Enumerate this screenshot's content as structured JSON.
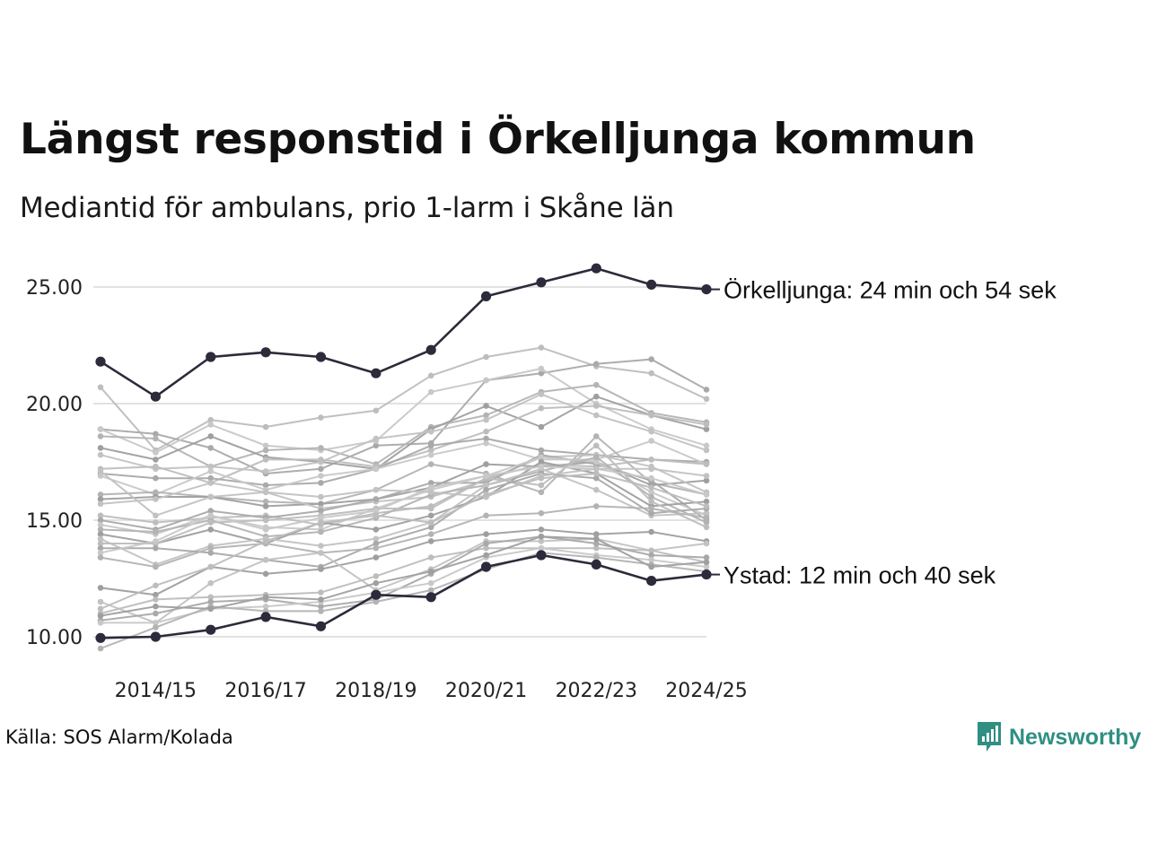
{
  "title": "Längst responstid i Örkelljunga kommun",
  "subtitle": "Mediantid för ambulans, prio 1-larm i Skåne län",
  "source": "Källa: SOS Alarm/Kolada",
  "brand": {
    "name": "Newsworthy",
    "icon": "newsworthy-logo-icon",
    "color": "#2f8f83"
  },
  "colors": {
    "highlight": "#2b2b3b",
    "background_series": "#b5b5b5",
    "grid": "#e2e2e2"
  },
  "chart_data": {
    "type": "line",
    "title": "Längst responstid i Örkelljunga kommun",
    "subtitle": "Mediantid för ambulans, prio 1-larm i Skåne län",
    "xlabel": "",
    "ylabel": "",
    "x": [
      "2013/14",
      "2014/15",
      "2015/16",
      "2016/17",
      "2017/18",
      "2018/19",
      "2019/20",
      "2020/21",
      "2021/22",
      "2022/23",
      "2023/24",
      "2024/25"
    ],
    "x_tick_labels": [
      "2014/15",
      "2016/17",
      "2018/19",
      "2020/21",
      "2022/23",
      "2024/25"
    ],
    "y_ticks": [
      "10.00",
      "15.00",
      "20.00",
      "25.00"
    ],
    "ylim": [
      9.5,
      26
    ],
    "grid": true,
    "highlighted_series": [
      {
        "name": "Örkelljunga",
        "label": "Örkelljunga: 24 min och 54 sek",
        "values": [
          21.8,
          20.3,
          22.0,
          22.2,
          22.0,
          21.3,
          22.3,
          24.6,
          25.2,
          25.8,
          25.1,
          24.9
        ]
      },
      {
        "name": "Ystad",
        "label": "Ystad: 12 min och 40 sek",
        "values": [
          9.95,
          10.0,
          10.3,
          10.85,
          10.45,
          11.8,
          11.7,
          13.0,
          13.5,
          13.1,
          12.4,
          12.67
        ]
      }
    ],
    "series": [
      {
        "values": [
          20.7,
          18.0,
          19.3,
          19.0,
          19.4,
          19.7,
          21.2,
          22.0,
          22.4,
          21.6,
          21.3,
          20.2
        ]
      },
      {
        "values": [
          18.9,
          18.7,
          18.1,
          17.0,
          17.2,
          18.2,
          18.3,
          21.0,
          21.3,
          21.7,
          21.9,
          20.6
        ]
      },
      {
        "values": [
          18.9,
          17.9,
          19.1,
          18.2,
          18.0,
          18.4,
          20.5,
          21.0,
          21.5,
          20.0,
          18.9,
          18.2
        ]
      },
      {
        "values": [
          18.6,
          18.5,
          17.3,
          18.0,
          18.1,
          17.4,
          19.0,
          19.5,
          20.5,
          20.8,
          19.6,
          19.2
        ]
      },
      {
        "values": [
          18.1,
          17.6,
          18.6,
          17.7,
          17.5,
          17.2,
          18.9,
          19.9,
          19.0,
          20.3,
          19.5,
          18.9
        ]
      },
      {
        "values": [
          17.8,
          17.2,
          17.3,
          17.1,
          17.5,
          18.5,
          18.8,
          19.3,
          20.4,
          19.5,
          18.8,
          18.0
        ]
      },
      {
        "values": [
          17.2,
          17.3,
          16.6,
          17.6,
          17.6,
          17.3,
          18.0,
          18.8,
          19.8,
          19.9,
          19.5,
          19.1
        ]
      },
      {
        "values": [
          17.0,
          16.8,
          16.8,
          16.5,
          16.6,
          17.2,
          18.2,
          18.5,
          18.0,
          17.8,
          17.6,
          17.5
        ]
      },
      {
        "values": [
          16.9,
          16.1,
          17.1,
          16.3,
          16.9,
          17.2,
          17.8,
          18.3,
          17.6,
          17.6,
          18.4,
          17.4
        ]
      },
      {
        "values": [
          16.1,
          16.2,
          16.0,
          15.8,
          15.7,
          16.3,
          17.4,
          17.0,
          16.2,
          18.6,
          16.6,
          16.1
        ]
      },
      {
        "values": [
          15.9,
          16.0,
          16.0,
          15.6,
          15.7,
          15.9,
          16.4,
          17.4,
          17.3,
          17.5,
          16.5,
          16.7
        ]
      },
      {
        "values": [
          15.7,
          15.9,
          16.6,
          16.2,
          15.5,
          15.8,
          16.0,
          16.7,
          17.7,
          17.8,
          17.3,
          16.2
        ]
      },
      {
        "values": [
          15.2,
          14.9,
          15.1,
          15.2,
          14.8,
          15.3,
          15.6,
          16.8,
          17.4,
          17.3,
          17.6,
          17.4
        ]
      },
      {
        "values": [
          15.0,
          14.6,
          15.4,
          15.1,
          15.4,
          15.9,
          16.6,
          16.6,
          17.8,
          17.4,
          16.7,
          15.0
        ]
      },
      {
        "values": [
          14.8,
          14.4,
          15.2,
          14.7,
          14.6,
          15.5,
          16.3,
          16.9,
          17.7,
          17.5,
          16.2,
          15.2
        ]
      },
      {
        "values": [
          14.6,
          14.5,
          15.0,
          14.3,
          14.5,
          15.1,
          16.1,
          16.5,
          17.1,
          17.7,
          16.0,
          14.9
        ]
      },
      {
        "values": [
          14.4,
          14.0,
          14.6,
          14.0,
          14.9,
          14.6,
          15.2,
          16.0,
          17.5,
          17.0,
          15.6,
          15.8
        ]
      },
      {
        "values": [
          14.2,
          13.1,
          13.9,
          14.2,
          13.9,
          14.2,
          14.9,
          16.5,
          17.2,
          16.3,
          15.2,
          15.3
        ]
      },
      {
        "values": [
          14.0,
          14.0,
          14.9,
          15.0,
          15.2,
          15.5,
          15.5,
          16.8,
          16.5,
          18.2,
          15.8,
          14.7
        ]
      },
      {
        "values": [
          13.8,
          13.8,
          13.6,
          13.3,
          13.0,
          14.0,
          14.7,
          16.3,
          17.0,
          16.8,
          15.3,
          15.5
        ]
      },
      {
        "values": [
          13.6,
          14.1,
          15.2,
          14.6,
          15.1,
          15.4,
          16.4,
          16.9,
          17.3,
          17.2,
          16.8,
          16.1
        ]
      },
      {
        "values": [
          13.4,
          13.0,
          13.8,
          14.0,
          13.6,
          13.8,
          14.4,
          15.2,
          15.3,
          15.6,
          15.5,
          15.1
        ]
      },
      {
        "values": [
          12.1,
          11.8,
          13.0,
          12.7,
          12.9,
          13.4,
          14.1,
          14.4,
          14.6,
          14.4,
          14.5,
          14.1
        ]
      },
      {
        "values": [
          11.5,
          10.6,
          12.3,
          13.3,
          13.6,
          12.0,
          12.9,
          14.1,
          14.1,
          14.2,
          13.7,
          14.0
        ]
      },
      {
        "values": [
          11.0,
          11.6,
          11.7,
          11.8,
          11.9,
          12.6,
          13.4,
          13.8,
          13.8,
          13.8,
          13.7,
          13.2
        ]
      },
      {
        "values": [
          10.7,
          11.0,
          11.5,
          11.6,
          11.3,
          11.6,
          12.7,
          14.0,
          14.3,
          14.0,
          13.5,
          13.4
        ]
      },
      {
        "values": [
          10.6,
          10.6,
          11.2,
          11.3,
          11.5,
          11.9,
          12.3,
          13.4,
          13.8,
          13.5,
          13.3,
          13.0
        ]
      },
      {
        "values": [
          9.5,
          10.4,
          11.3,
          11.1,
          11.1,
          11.5,
          12.0,
          12.9,
          13.6,
          13.4,
          13.1,
          12.8
        ]
      },
      {
        "values": [
          10.9,
          11.3,
          11.2,
          11.7,
          11.6,
          12.3,
          12.8,
          13.5,
          14.3,
          14.2,
          13.0,
          13.2
        ]
      },
      {
        "values": [
          17.1,
          15.2,
          16.0,
          16.2,
          16.0,
          16.3,
          16.2,
          16.0,
          16.9,
          17.2,
          17.2,
          16.9
        ]
      },
      {
        "values": [
          11.2,
          12.2,
          13.0,
          14.1,
          14.9,
          15.2,
          14.9,
          16.1,
          16.8,
          17.0,
          16.4,
          15.6
        ]
      }
    ]
  }
}
